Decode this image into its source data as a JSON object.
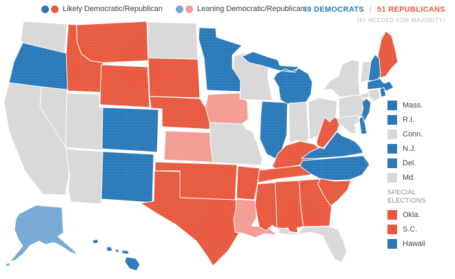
{
  "palette": {
    "likely_dem": "#2979b9",
    "leaning_dem": "#74a9d2",
    "likely_rep": "#e8593f",
    "leaning_rep": "#f29c92",
    "none": "#d8d8d8"
  },
  "top_legend": {
    "likely": "Likely Democratic/Republican",
    "leaning": "Leaning Democratic/Republican"
  },
  "tally": {
    "democrats": "49 DEMOCRATS",
    "republicans": "51 REPUBLICANS",
    "note": "(51 NEEDED FOR MAJORITY)"
  },
  "side_legend": {
    "items": [
      {
        "label": "Mass.",
        "status": "likely_dem"
      },
      {
        "label": "R.I.",
        "status": "likely_dem"
      },
      {
        "label": "Conn.",
        "status": "none"
      },
      {
        "label": "N.J.",
        "status": "likely_dem"
      },
      {
        "label": "Del.",
        "status": "likely_dem"
      },
      {
        "label": "Md.",
        "status": "none"
      }
    ],
    "special_header": "SPECIAL ELECTIONS",
    "special_items": [
      {
        "label": "Okla.",
        "status": "likely_rep"
      },
      {
        "label": "S.C.",
        "status": "likely_rep"
      },
      {
        "label": "Hawaii",
        "status": "likely_dem"
      }
    ]
  },
  "map": {
    "states": [
      {
        "id": "WA",
        "status": "none"
      },
      {
        "id": "OR",
        "status": "likely_dem"
      },
      {
        "id": "CA",
        "status": "none"
      },
      {
        "id": "NV",
        "status": "none"
      },
      {
        "id": "ID",
        "status": "likely_rep"
      },
      {
        "id": "MT",
        "status": "likely_rep"
      },
      {
        "id": "WY",
        "status": "likely_rep"
      },
      {
        "id": "UT",
        "status": "none"
      },
      {
        "id": "CO",
        "status": "likely_dem"
      },
      {
        "id": "AZ",
        "status": "none"
      },
      {
        "id": "NM",
        "status": "likely_dem"
      },
      {
        "id": "ND",
        "status": "none"
      },
      {
        "id": "SD",
        "status": "likely_rep"
      },
      {
        "id": "NE",
        "status": "likely_rep"
      },
      {
        "id": "KS",
        "status": "leaning_rep"
      },
      {
        "id": "OK",
        "status": "likely_rep"
      },
      {
        "id": "TX",
        "status": "likely_rep"
      },
      {
        "id": "MN",
        "status": "likely_dem"
      },
      {
        "id": "IA",
        "status": "leaning_rep"
      },
      {
        "id": "MO",
        "status": "none"
      },
      {
        "id": "AR",
        "status": "likely_rep"
      },
      {
        "id": "LA",
        "status": "leaning_rep"
      },
      {
        "id": "WI",
        "status": "none"
      },
      {
        "id": "IL",
        "status": "likely_dem"
      },
      {
        "id": "MI",
        "status": "likely_dem"
      },
      {
        "id": "IN",
        "status": "none"
      },
      {
        "id": "OH",
        "status": "none"
      },
      {
        "id": "KY",
        "status": "likely_rep"
      },
      {
        "id": "TN",
        "status": "likely_rep"
      },
      {
        "id": "MS",
        "status": "likely_rep"
      },
      {
        "id": "AL",
        "status": "likely_rep"
      },
      {
        "id": "GA",
        "status": "likely_rep"
      },
      {
        "id": "FL",
        "status": "none"
      },
      {
        "id": "SC",
        "status": "likely_rep"
      },
      {
        "id": "NC",
        "status": "likely_dem"
      },
      {
        "id": "VA",
        "status": "likely_dem"
      },
      {
        "id": "WV",
        "status": "likely_rep"
      },
      {
        "id": "PA",
        "status": "none"
      },
      {
        "id": "NY",
        "status": "none"
      },
      {
        "id": "ME",
        "status": "likely_rep"
      },
      {
        "id": "NH",
        "status": "likely_dem"
      },
      {
        "id": "VT",
        "status": "none"
      },
      {
        "id": "MA",
        "status": "likely_dem"
      },
      {
        "id": "RI",
        "status": "likely_dem"
      },
      {
        "id": "CT",
        "status": "none"
      },
      {
        "id": "NJ",
        "status": "likely_dem"
      },
      {
        "id": "DE",
        "status": "likely_dem"
      },
      {
        "id": "MD",
        "status": "none"
      },
      {
        "id": "AK",
        "status": "leaning_dem"
      },
      {
        "id": "HI",
        "status": "likely_dem"
      }
    ]
  }
}
